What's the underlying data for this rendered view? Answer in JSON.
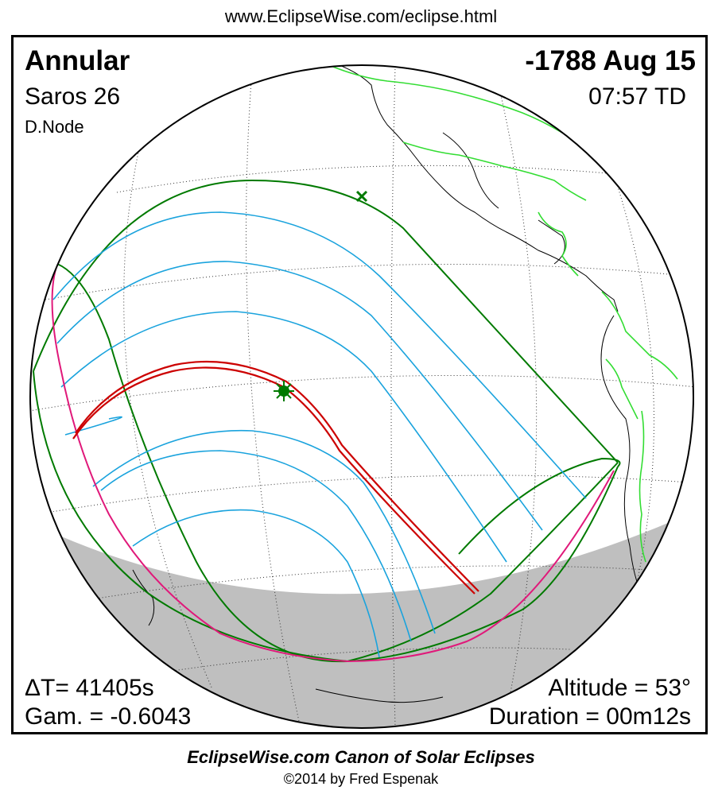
{
  "header": {
    "url": "www.EclipseWise.com/eclipse.html"
  },
  "eclipse": {
    "type": "Annular",
    "date": "-1788 Aug 15",
    "saros": "Saros  26",
    "time": "07:57 TD",
    "node": "D.Node",
    "delta_t": "ΔT=  41405s",
    "gamma": "Gam. = -0.6043",
    "altitude": "Altitude = 53°",
    "duration": "Duration = 00m12s"
  },
  "colors": {
    "central_path": "#cc0000",
    "penumbral_limits": "#007a00",
    "penumbral_hourly": "#1aa3dd",
    "sunrise_sunset": "#e0197a",
    "borders": "#33dd33",
    "night_shadow": "#bfbfbf"
  },
  "markers": {
    "greatest_eclipse": "sun-star-icon",
    "subsolar_point": "x-cross-icon"
  },
  "footer": {
    "title": "EclipseWise.com Canon of Solar Eclipses",
    "copyright": "©2014 by Fred Espenak"
  }
}
